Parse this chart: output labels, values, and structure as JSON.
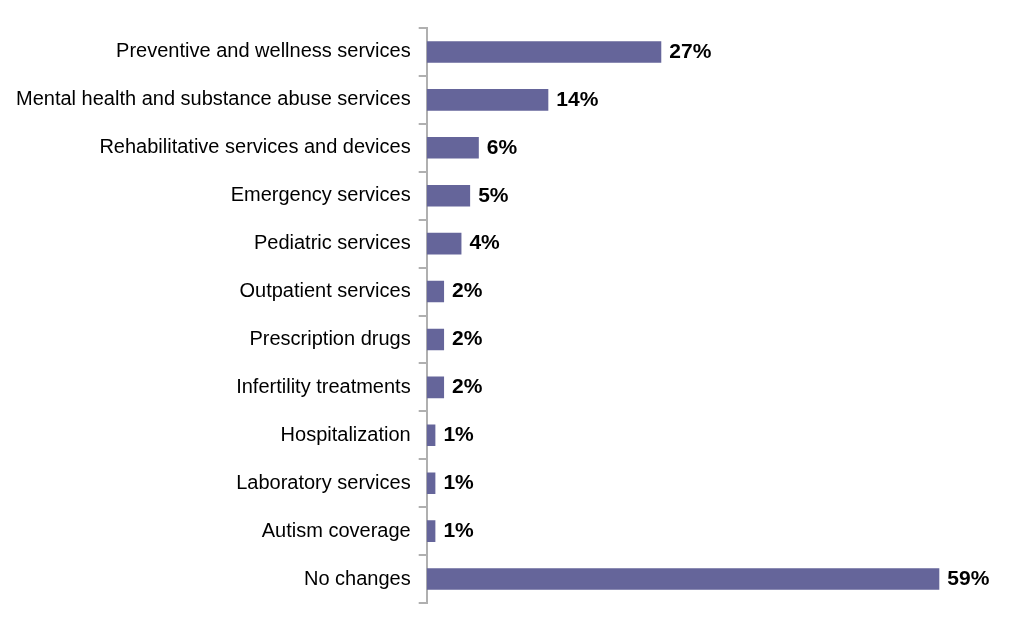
{
  "chart_data": {
    "type": "bar",
    "orientation": "horizontal",
    "categories": [
      "Preventive and wellness services",
      "Mental health and substance abuse services",
      "Rehabilitative services and devices",
      "Emergency services",
      "Pediatric services",
      "Outpatient services",
      "Prescription drugs",
      "Infertility treatments",
      "Hospitalization",
      "Laboratory services",
      "Autism coverage",
      "No changes"
    ],
    "values": [
      27,
      14,
      6,
      5,
      4,
      2,
      2,
      2,
      1,
      1,
      1,
      59
    ],
    "value_labels": [
      "27%",
      "14%",
      "6%",
      "5%",
      "4%",
      "2%",
      "2%",
      "2%",
      "1%",
      "1%",
      "1%",
      "59%"
    ],
    "color": "#65659a",
    "grid": false,
    "legend": false,
    "tick_labels": "y"
  }
}
